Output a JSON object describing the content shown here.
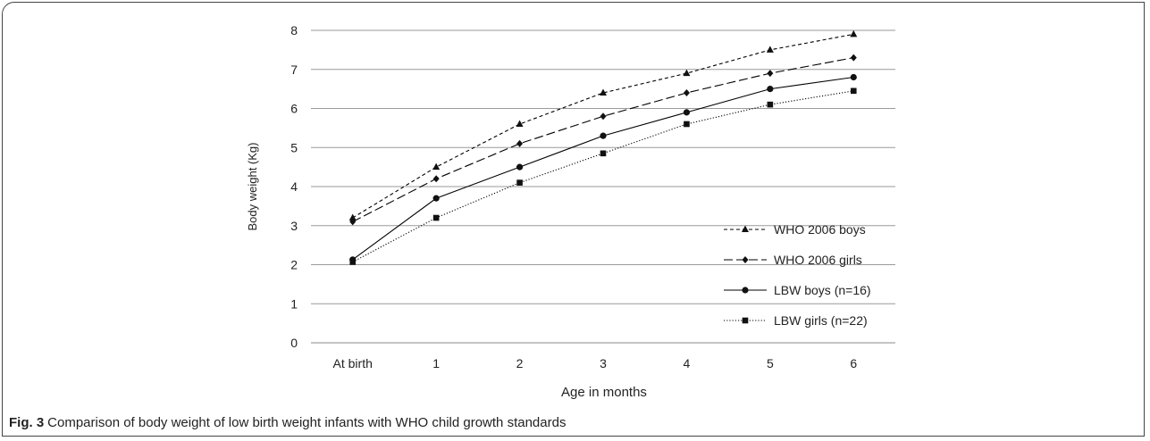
{
  "caption": {
    "label": "Fig. 3",
    "text": "Comparison of body weight of low birth weight infants with WHO child growth standards"
  },
  "chart_data": {
    "type": "line",
    "title": "",
    "xlabel": "Age in months",
    "ylabel": "Body weight (Kg)",
    "categories": [
      "At birth",
      "1",
      "2",
      "3",
      "4",
      "5",
      "6"
    ],
    "ylim": [
      0,
      8
    ],
    "yticks": [
      0,
      1,
      2,
      3,
      4,
      5,
      6,
      7,
      8
    ],
    "grid": "horizontal",
    "legend": "right",
    "series": [
      {
        "name": "WHO 2006 boys",
        "values": [
          3.2,
          4.5,
          5.6,
          6.4,
          6.9,
          7.5,
          7.9
        ],
        "dash": "short-dash",
        "marker": "triangle",
        "color": "#000000"
      },
      {
        "name": "WHO 2006 girls",
        "values": [
          3.1,
          4.2,
          5.1,
          5.8,
          6.4,
          6.9,
          7.3
        ],
        "dash": "long-dash",
        "marker": "diamond",
        "color": "#000000"
      },
      {
        "name": "LBW boys (n=16)",
        "values": [
          2.13,
          3.7,
          4.5,
          5.3,
          5.9,
          6.5,
          6.8
        ],
        "dash": "solid",
        "marker": "circle",
        "color": "#000000"
      },
      {
        "name": "LBW girls (n=22)",
        "values": [
          2.07,
          3.2,
          4.1,
          4.85,
          5.6,
          6.1,
          6.45
        ],
        "dash": "dotted",
        "marker": "square",
        "color": "#000000"
      }
    ]
  }
}
